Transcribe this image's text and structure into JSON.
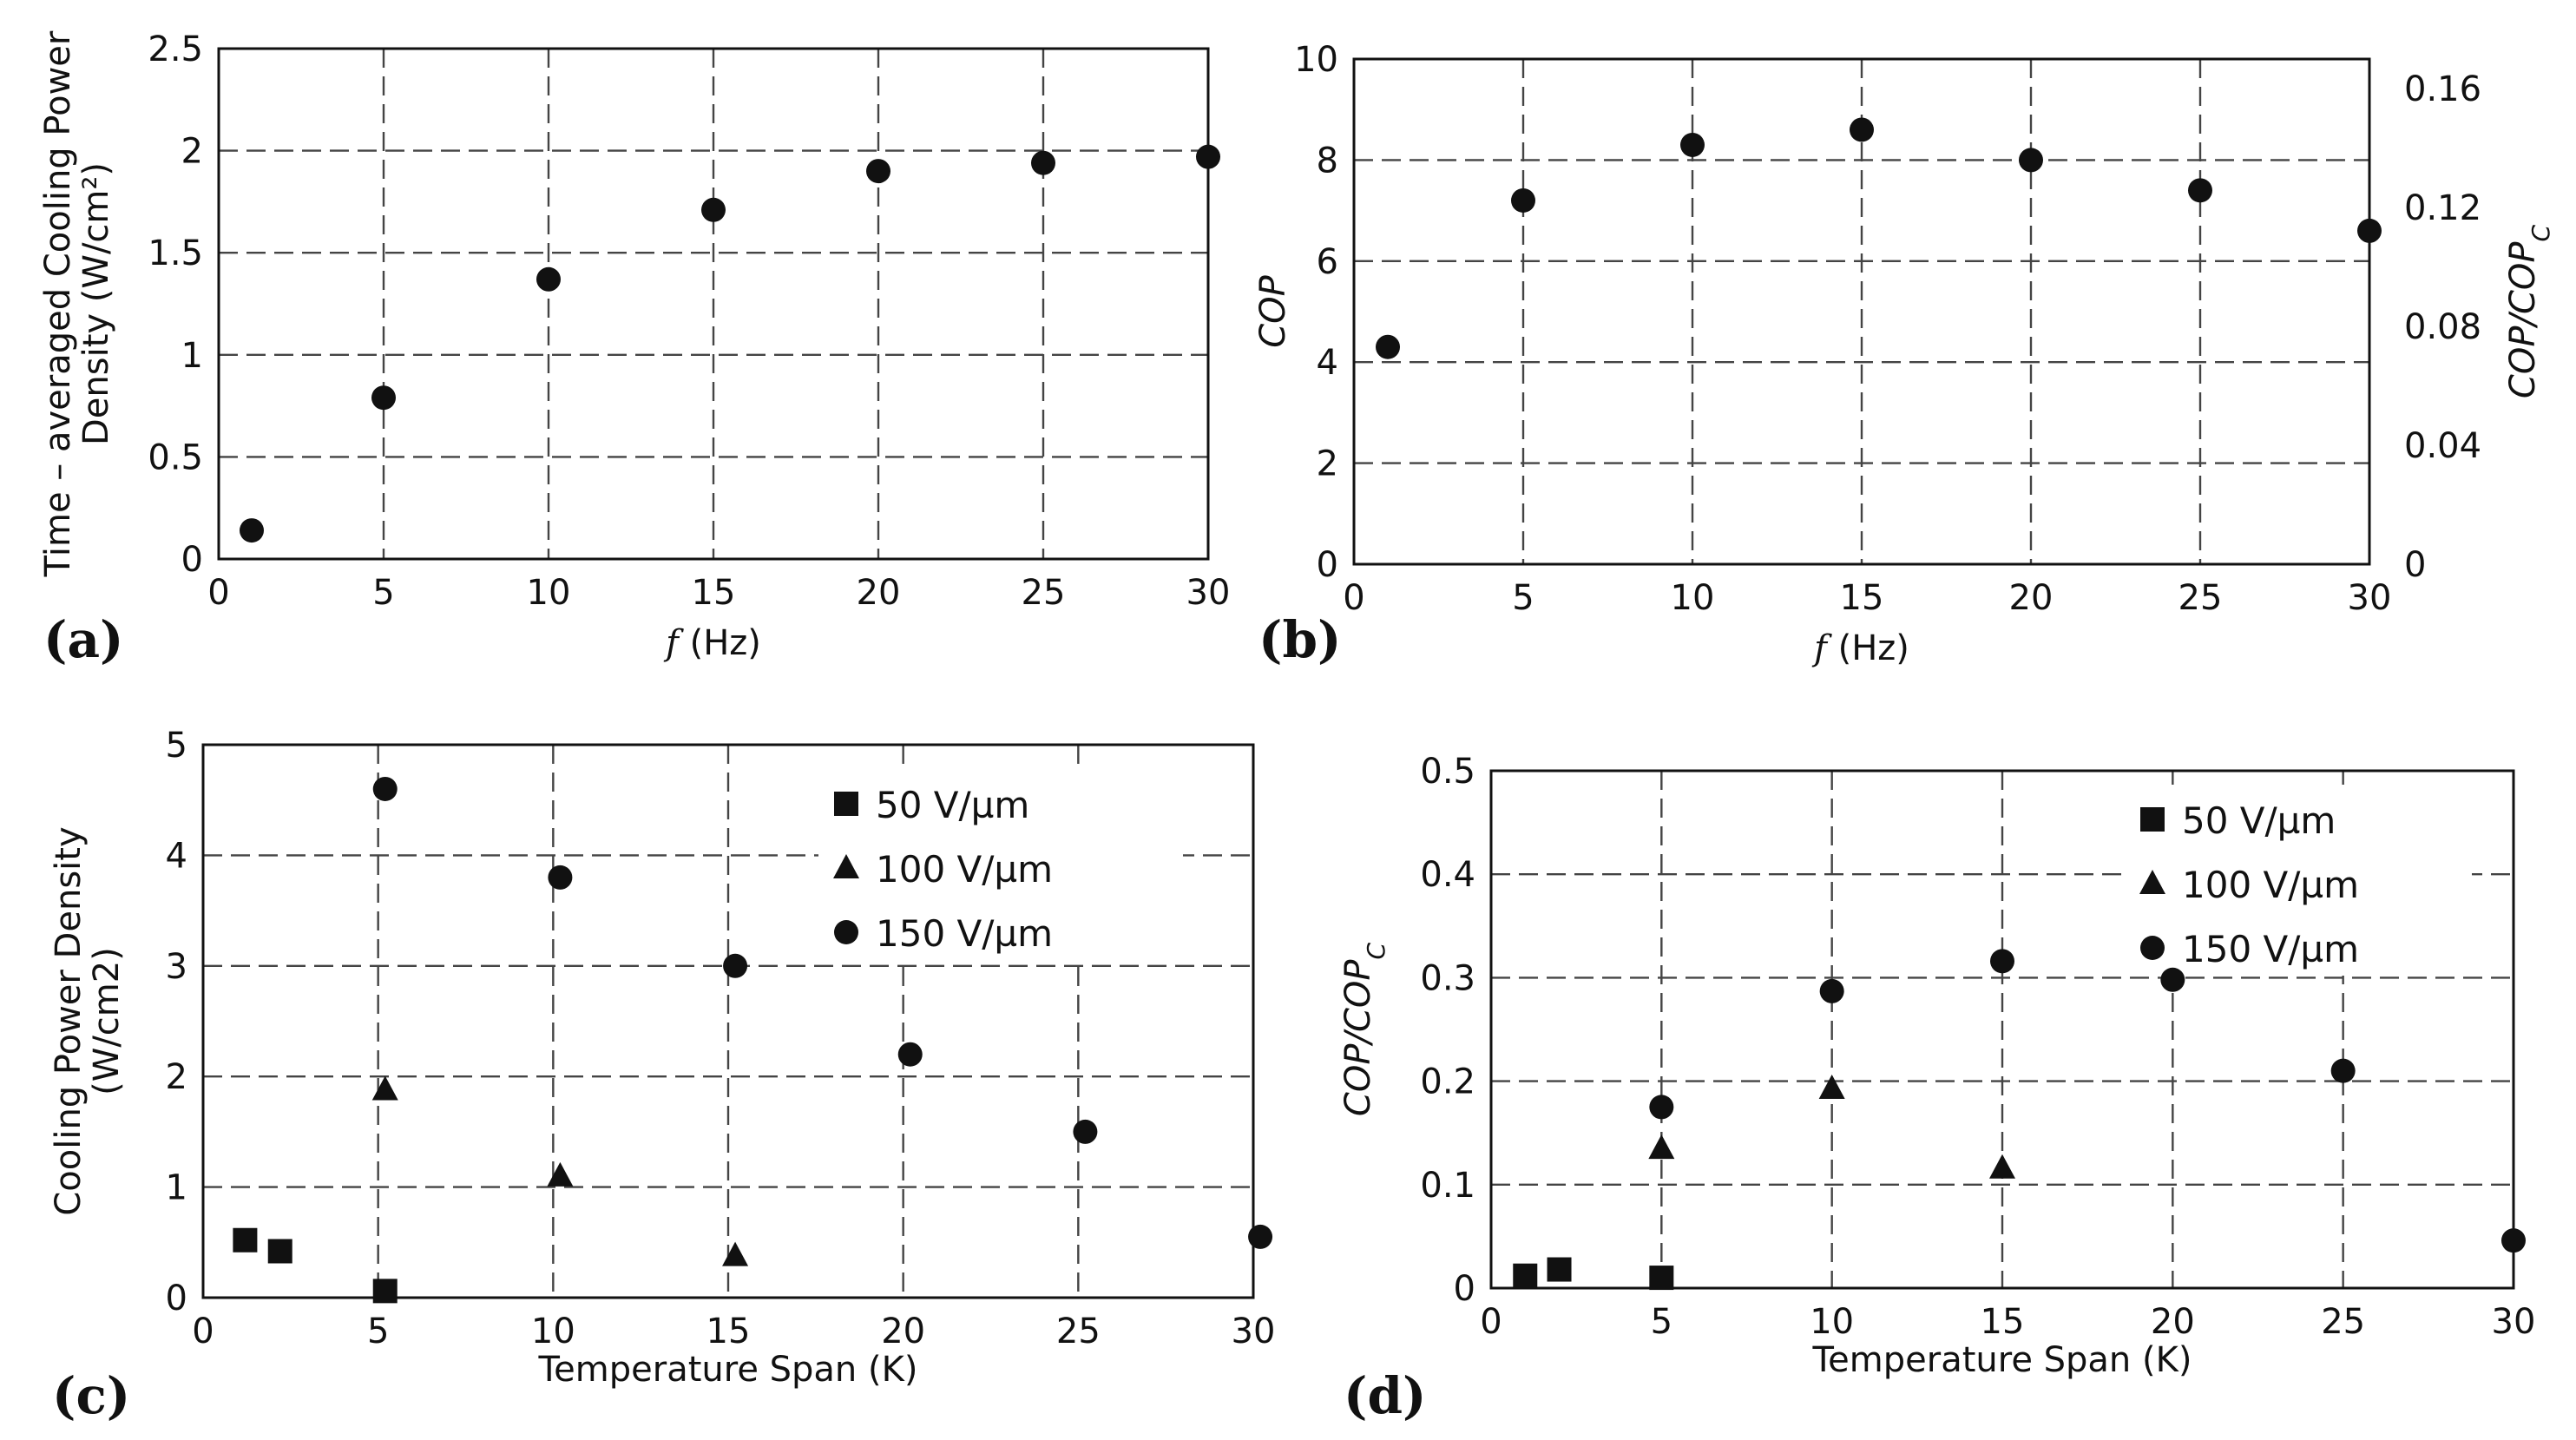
{
  "chart_data": [
    {
      "id": "a",
      "type": "scatter",
      "panel_label": "(a)",
      "xlabel_italic": "f",
      "xlabel": " (Hz)",
      "ylabel_lines": [
        "Time – averaged Cooling Power",
        "Density (W/cm²)"
      ],
      "xlim": [
        0,
        30
      ],
      "ylim": [
        0,
        2.5
      ],
      "xticks": [
        0,
        5,
        10,
        15,
        20,
        25,
        30
      ],
      "yticks": [
        0,
        0.5,
        1,
        1.5,
        2,
        2.5
      ],
      "xtick_labels": [
        "0",
        "5",
        "10",
        "15",
        "20",
        "25",
        "30"
      ],
      "ytick_labels": [
        "0",
        "0.5",
        "1",
        "1.5",
        "2",
        "2.5"
      ],
      "grid": true,
      "series": [
        {
          "name": "cooling power",
          "marker": "circle",
          "x": [
            1,
            5,
            10,
            15,
            20,
            25,
            30
          ],
          "y": [
            0.14,
            0.79,
            1.37,
            1.71,
            1.9,
            1.94,
            1.97
          ]
        }
      ]
    },
    {
      "id": "b",
      "type": "scatter",
      "panel_label": "(b)",
      "xlabel_italic": "f",
      "xlabel": " (Hz)",
      "ylabel": "COP",
      "y2label_main": "COP/COP",
      "y2label_sub": "C",
      "xlim": [
        0,
        30
      ],
      "ylim": [
        0,
        10
      ],
      "y2lim": [
        0,
        0.17
      ],
      "xticks": [
        0,
        5,
        10,
        15,
        20,
        25,
        30
      ],
      "yticks": [
        0,
        2,
        4,
        6,
        8,
        10
      ],
      "y2ticks": [
        0,
        0.04,
        0.08,
        0.12,
        0.16
      ],
      "xtick_labels": [
        "0",
        "5",
        "10",
        "15",
        "20",
        "25",
        "30"
      ],
      "ytick_labels": [
        "0",
        "2",
        "4",
        "6",
        "8",
        "10"
      ],
      "y2tick_labels": [
        "0",
        "0.04",
        "0.08",
        "0.12",
        "0.16"
      ],
      "grid": true,
      "series": [
        {
          "name": "COP",
          "marker": "circle",
          "x": [
            1,
            5,
            10,
            15,
            20,
            25,
            30
          ],
          "y": [
            4.3,
            7.2,
            8.3,
            8.6,
            8.0,
            7.4,
            6.6
          ]
        }
      ]
    },
    {
      "id": "c",
      "type": "scatter",
      "panel_label": "(c)",
      "xlabel": "Temperature Span (K)",
      "ylabel_lines": [
        "Cooling Power Density",
        "(W/cm2)"
      ],
      "xlim": [
        0,
        30
      ],
      "ylim": [
        0,
        5
      ],
      "xticks": [
        0,
        5,
        10,
        15,
        20,
        25,
        30
      ],
      "yticks": [
        0,
        1,
        2,
        3,
        4,
        5
      ],
      "xtick_labels": [
        "0",
        "5",
        "10",
        "15",
        "20",
        "25",
        "30"
      ],
      "ytick_labels": [
        "0",
        "1",
        "2",
        "3",
        "4",
        "5"
      ],
      "grid": true,
      "legend": "top-right",
      "series": [
        {
          "name": "50 V/µm",
          "marker": "square",
          "x": [
            1.2,
            2.2,
            5.2
          ],
          "y": [
            0.52,
            0.42,
            0.06
          ]
        },
        {
          "name": "100 V/µm",
          "marker": "triangle",
          "x": [
            5.2,
            10.2,
            15.2
          ],
          "y": [
            1.88,
            1.1,
            0.38
          ]
        },
        {
          "name": "150 V/µm",
          "marker": "circle",
          "x": [
            5.2,
            10.2,
            15.2,
            20.2,
            25.2,
            30.2
          ],
          "y": [
            4.6,
            3.8,
            3.0,
            2.2,
            1.5,
            0.55
          ]
        }
      ]
    },
    {
      "id": "d",
      "type": "scatter",
      "panel_label": "(d)",
      "xlabel": "Temperature Span (K)",
      "ylabel_main": "COP/COP",
      "ylabel_sub": "C",
      "xlim": [
        0,
        30
      ],
      "ylim": [
        0,
        0.5
      ],
      "xticks": [
        0,
        5,
        10,
        15,
        20,
        25,
        30
      ],
      "yticks": [
        0,
        0.1,
        0.2,
        0.3,
        0.4,
        0.5
      ],
      "xtick_labels": [
        "0",
        "5",
        "10",
        "15",
        "20",
        "25",
        "30"
      ],
      "ytick_labels": [
        "0",
        "0.1",
        "0.2",
        "0.3",
        "0.4",
        "0.5"
      ],
      "grid": true,
      "legend": "top-right",
      "series": [
        {
          "name": "50 V/µm",
          "marker": "square",
          "x": [
            1,
            2,
            5
          ],
          "y": [
            0.012,
            0.018,
            0.01
          ]
        },
        {
          "name": "100 V/µm",
          "marker": "triangle",
          "x": [
            5,
            10,
            15
          ],
          "y": [
            0.135,
            0.193,
            0.116
          ]
        },
        {
          "name": "150 V/µm",
          "marker": "circle",
          "x": [
            5,
            10,
            15,
            20,
            25,
            30
          ],
          "y": [
            0.175,
            0.287,
            0.316,
            0.298,
            0.21,
            0.046
          ]
        }
      ]
    }
  ]
}
